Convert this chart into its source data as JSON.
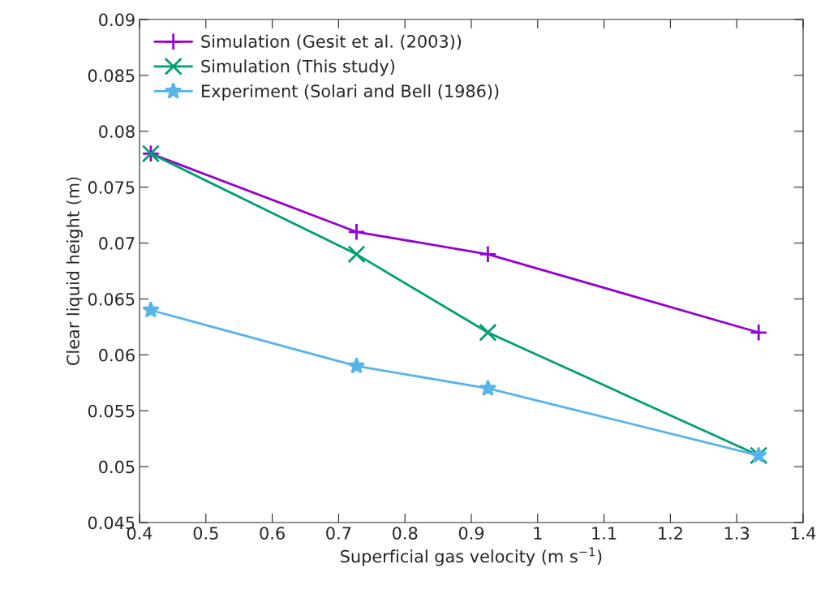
{
  "chart_data": {
    "type": "line",
    "xlabel": "Superficial gas velocity (m s$^{−1}$)",
    "ylabel": "Clear liquid height (m)",
    "xlim": [
      0.4,
      1.4
    ],
    "xticks": [
      0.4,
      0.5,
      0.6,
      0.7,
      0.8,
      0.9,
      1,
      1.1,
      1.2,
      1.3,
      1.4
    ],
    "ylim": [
      0.045,
      0.09
    ],
    "yticks": [
      0.045,
      0.05,
      0.055,
      0.06,
      0.065,
      0.07,
      0.075,
      0.08,
      0.085,
      0.09
    ],
    "x": [
      0.417,
      0.727,
      0.925,
      1.333
    ],
    "series": [
      {
        "name": "Simulation (Gesit et al. (2003))",
        "color": "#9400d3",
        "marker": "plus",
        "values": [
          0.078,
          0.071,
          0.069,
          0.062
        ]
      },
      {
        "name": "Simulation (This study)",
        "color": "#009e73",
        "marker": "cross",
        "values": [
          0.078,
          0.069,
          0.062,
          0.051
        ]
      },
      {
        "name": "Experiment (Solari and Bell (1986))",
        "color": "#56b4e9",
        "marker": "star",
        "values": [
          0.064,
          0.059,
          0.057,
          0.051
        ]
      }
    ],
    "legend": "top left",
    "grid": false,
    "line_style": "solid"
  }
}
